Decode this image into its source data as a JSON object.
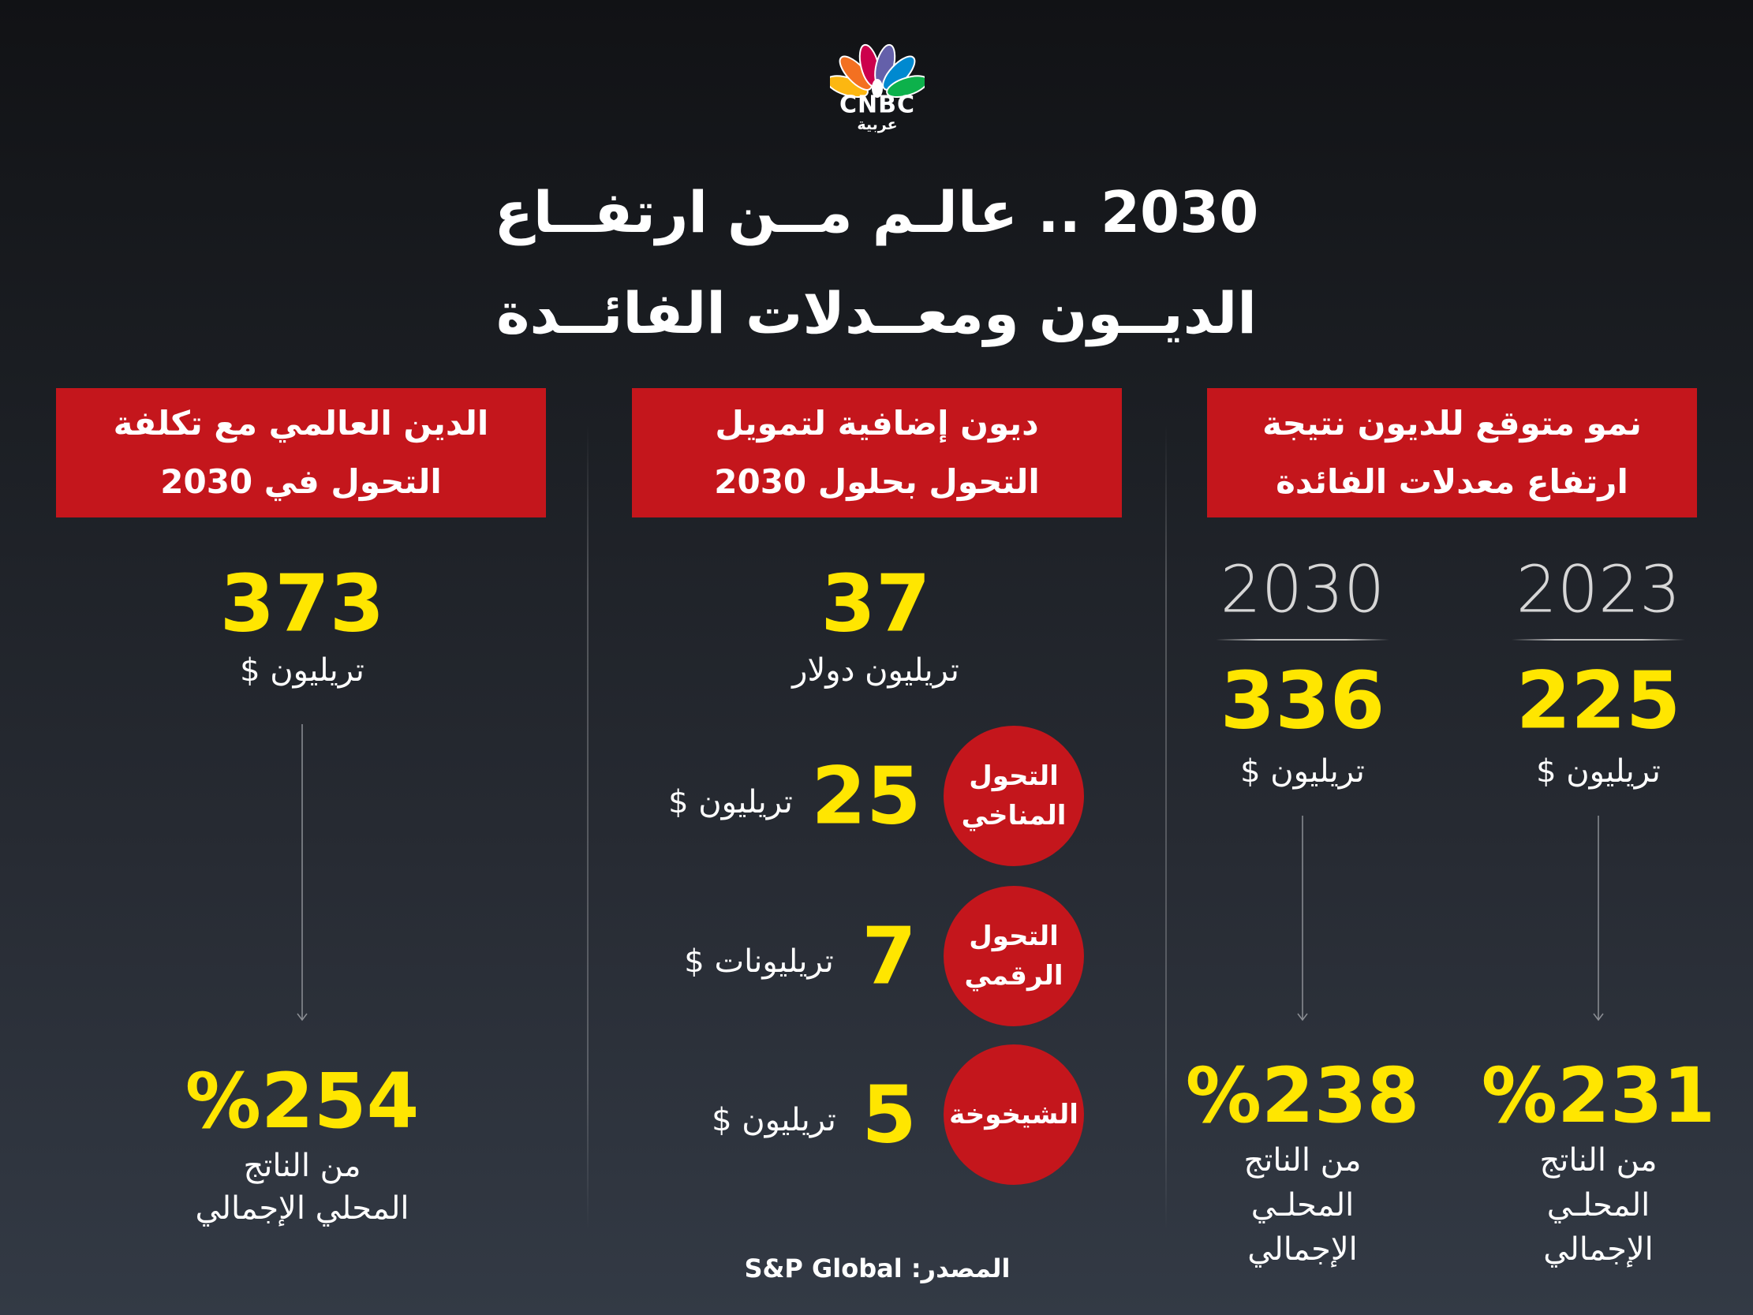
{
  "logo": {
    "brand": "CNBC",
    "sub": "عربية",
    "feather_colors": [
      "#fcb711",
      "#f37021",
      "#cc004c",
      "#6460aa",
      "#0089d0",
      "#0db14b"
    ]
  },
  "title": {
    "line1": "2030 .. عالـم مــن ارتفــاع",
    "line2": "الديــون ومعــدلات الفائــدة"
  },
  "colors": {
    "header_box": "#c4161c",
    "highlight": "#ffe600"
  },
  "columns": {
    "right": {
      "header": [
        "نمو متوقع للديون نتيجة",
        "ارتفاع معدلات الفائدة"
      ],
      "items": [
        {
          "year": "2023",
          "value": "225",
          "unit": "تريليون $",
          "pct": "%231",
          "pct_label": [
            "من الناتج",
            "المحلـي",
            "الإجمالي"
          ]
        },
        {
          "year": "2030",
          "value": "336",
          "unit": "تريليون $",
          "pct": "%238",
          "pct_label": [
            "من الناتج",
            "المحلـي",
            "الإجمالي"
          ]
        }
      ]
    },
    "middle": {
      "header": [
        "ديون إضافية لتمويل",
        "التحول بحلول 2030"
      ],
      "total": {
        "value": "37",
        "unit": "تريليون دولار"
      },
      "breakdown": [
        {
          "label": [
            "التحول",
            "المناخي"
          ],
          "value": "25",
          "unit": "تريليون $"
        },
        {
          "label": [
            "التحول",
            "الرقمي"
          ],
          "value": "7",
          "unit": "تريليونات $"
        },
        {
          "label": [
            "الشيخوخة"
          ],
          "value": "5",
          "unit": "تريليون $"
        }
      ]
    },
    "left": {
      "header": [
        "الدين العالمي مع تكلفة",
        "التحول في 2030"
      ],
      "value": "373",
      "unit": "تريليون $",
      "pct": "%254",
      "pct_label": [
        "من الناتج",
        "المحلي الإجمالي"
      ]
    }
  },
  "source": "المصدر: S&P Global"
}
